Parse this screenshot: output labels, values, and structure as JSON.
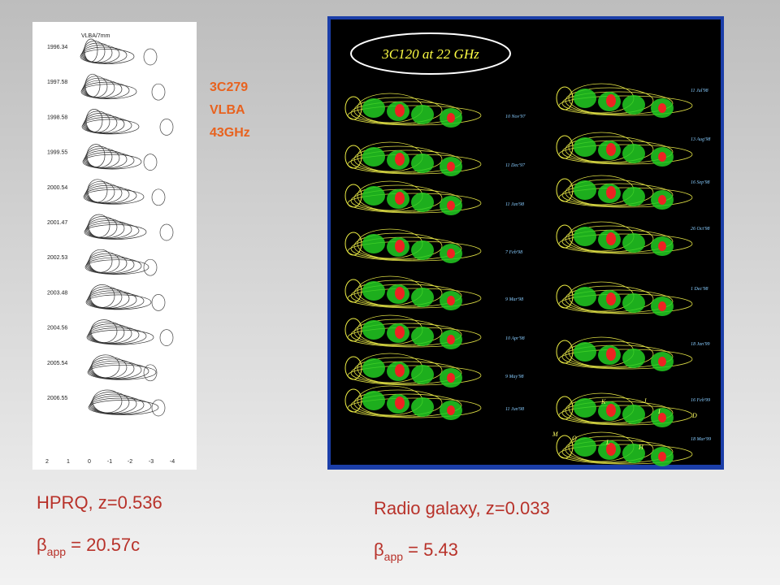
{
  "left_panel": {
    "header": "VLBA/7mm",
    "epochs": [
      "1996.34",
      "1997.58",
      "1998.58",
      "1999.55",
      "2000.54",
      "2001.47",
      "2002.53",
      "2003.48",
      "2004.56",
      "2005.54",
      "2006.55"
    ],
    "axis_labels": [
      "2",
      "1",
      "0",
      "-1",
      "-2",
      "-3",
      "-4"
    ]
  },
  "left_label": [
    "3C279",
    "VLBA",
    "43GHz"
  ],
  "right_panel": {
    "title": "3C120 at 22 GHz",
    "dates_left": [
      "10 Nov'97",
      "11 Dec'97",
      "11 Jan'98",
      "7 Feb'98",
      "9 Mar'98",
      "10 Apr'98",
      "9 May'98",
      "11 Jun'98"
    ],
    "dates_right": [
      "11 Jul'98",
      "13 Aug'98",
      "16 Sep'98",
      "26 Oct'98",
      "1 Dec'98",
      "18 Jan'99",
      "16 Feb'99",
      "18 Mar'99"
    ],
    "components": [
      "K",
      "J",
      "I",
      "D",
      "M",
      "O",
      "L",
      "H"
    ]
  },
  "left_caption": {
    "line1": "HPRQ, z=0.536",
    "beta": "β",
    "sub": "app",
    "rest": " =  20.57c"
  },
  "right_caption": {
    "line1": "Radio galaxy, z=0.033",
    "beta": "β",
    "sub": "app",
    "rest": " = 5.43"
  }
}
